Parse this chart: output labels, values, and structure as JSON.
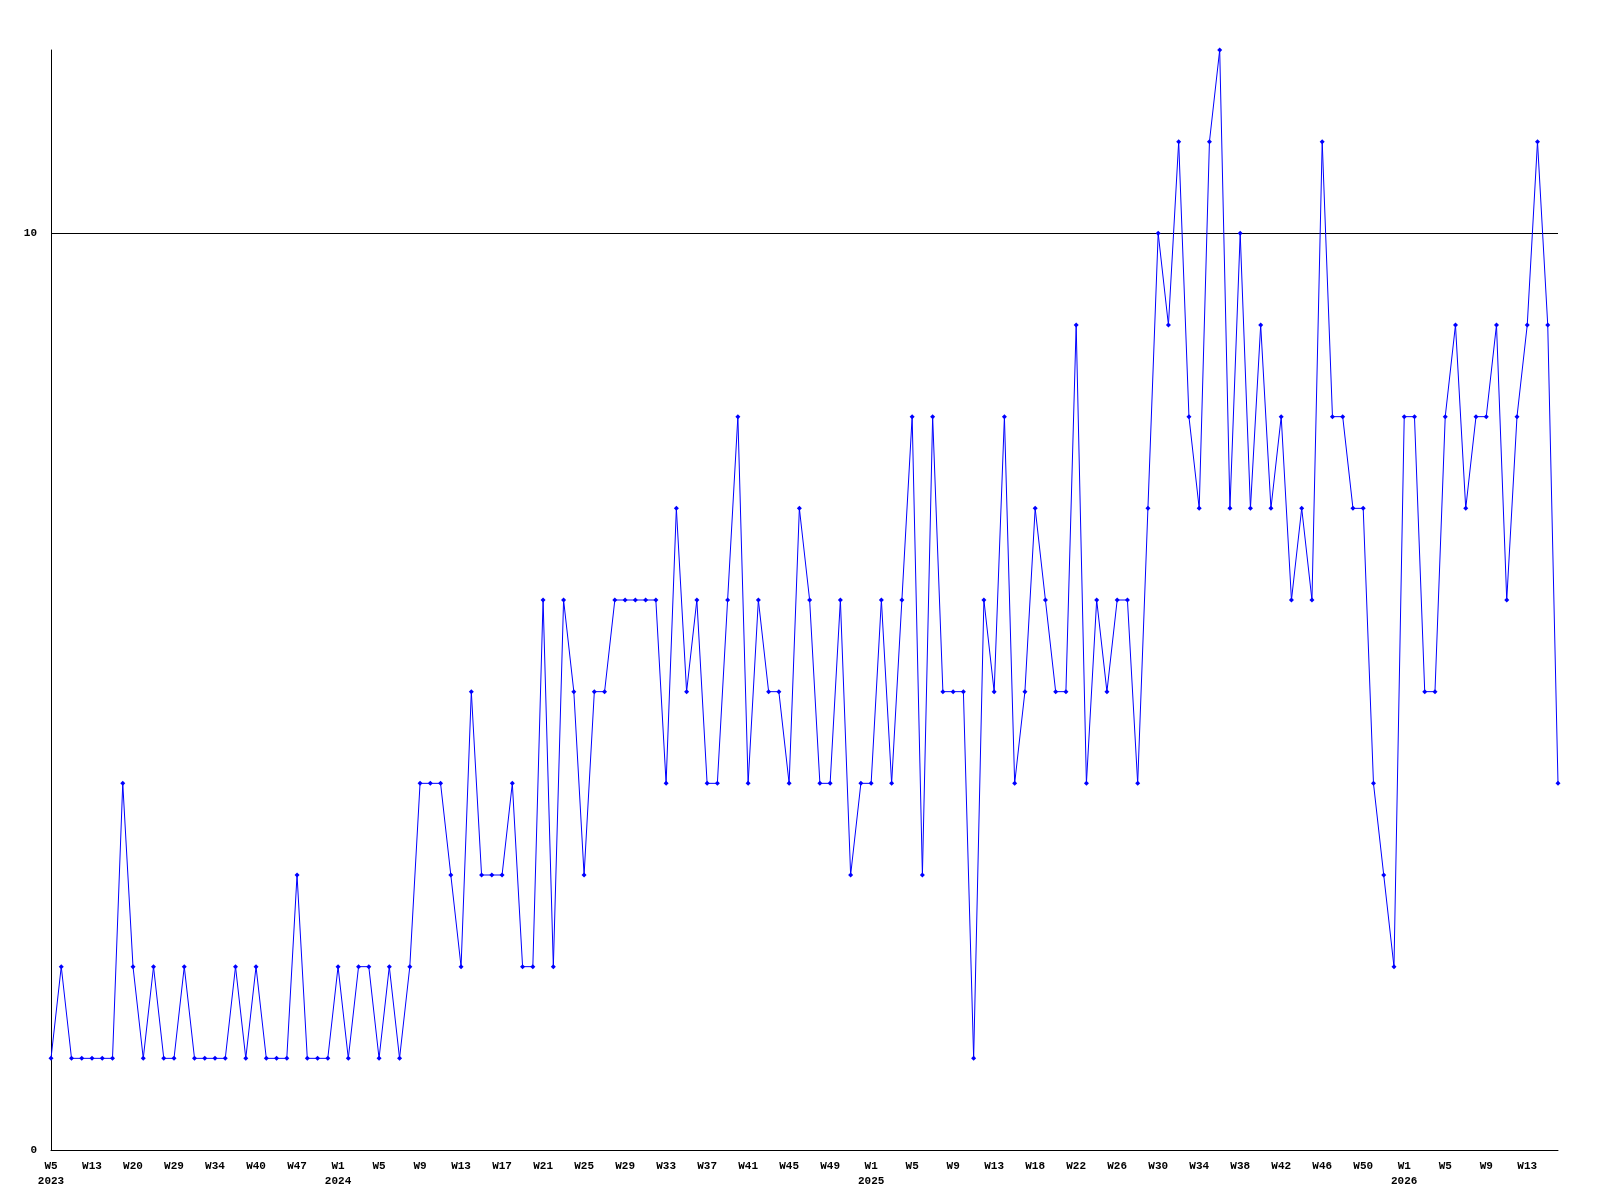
{
  "chart_data": {
    "type": "line",
    "categories": [
      "W5\n2023",
      null,
      null,
      null,
      "W13",
      null,
      null,
      null,
      "W20",
      null,
      null,
      null,
      "W29",
      null,
      null,
      null,
      "W34",
      null,
      null,
      null,
      "W40",
      null,
      null,
      null,
      "W47",
      null,
      null,
      null,
      "W1\n2024",
      null,
      null,
      null,
      "W5",
      null,
      null,
      null,
      "W9",
      null,
      null,
      null,
      "W13",
      null,
      null,
      null,
      "W17",
      null,
      null,
      null,
      "W21",
      null,
      null,
      null,
      "W25",
      null,
      null,
      null,
      "W29",
      null,
      null,
      null,
      "W33",
      null,
      null,
      null,
      "W37",
      null,
      null,
      null,
      "W41",
      null,
      null,
      null,
      "W45",
      null,
      null,
      null,
      "W49",
      null,
      null,
      null,
      "W1\n2025",
      null,
      null,
      null,
      "W5",
      null,
      null,
      null,
      "W9",
      null,
      null,
      null,
      "W13",
      null,
      null,
      null,
      "W18",
      null,
      null,
      null,
      "W22",
      null,
      null,
      null,
      "W26",
      null,
      null,
      null,
      "W30",
      null,
      null,
      null,
      "W34",
      null,
      null,
      null,
      "W38",
      null,
      null,
      null,
      "W42",
      null,
      null,
      null,
      "W46",
      null,
      null,
      null,
      "W50",
      null,
      null,
      null,
      "W1\n2026",
      null,
      null,
      null,
      "W5",
      null,
      null,
      null,
      "W9",
      null,
      null,
      null,
      "W13",
      null,
      null,
      null
    ],
    "series": [
      {
        "color": "#0000ff",
        "values": [
          1,
          2,
          1,
          1,
          1,
          1,
          1,
          4,
          2,
          1,
          2,
          1,
          1,
          2,
          1,
          1,
          1,
          1,
          2,
          1,
          2,
          1,
          1,
          1,
          3,
          1,
          1,
          1,
          2,
          1,
          2,
          2,
          1,
          2,
          1,
          2,
          4,
          4,
          4,
          3,
          2,
          5,
          3,
          3,
          3,
          4,
          2,
          2,
          6,
          2,
          6,
          5,
          3,
          5,
          5,
          6,
          6,
          6,
          6,
          6,
          4,
          7,
          5,
          6,
          4,
          4,
          6,
          8,
          4,
          6,
          5,
          5,
          4,
          7,
          6,
          4,
          4,
          6,
          3,
          4,
          4,
          6,
          4,
          6,
          8,
          3,
          8,
          5,
          5,
          5,
          1,
          6,
          5,
          8,
          4,
          5,
          7,
          6,
          5,
          5,
          9,
          4,
          6,
          5,
          6,
          6,
          4,
          7,
          10,
          9,
          11,
          8,
          7,
          11,
          12,
          7,
          10,
          7,
          9,
          7,
          8,
          6,
          7,
          6,
          11,
          8,
          8,
          7,
          7,
          4,
          3,
          2,
          8,
          8,
          5,
          5,
          8,
          9,
          7,
          8,
          8,
          9,
          6,
          8,
          9,
          11,
          9,
          4
        ]
      }
    ],
    "ylim": [
      0,
      12
    ],
    "yticks": [
      0,
      10
    ],
    "grid": "y",
    "marker": "diamond",
    "line_style": "solid"
  }
}
